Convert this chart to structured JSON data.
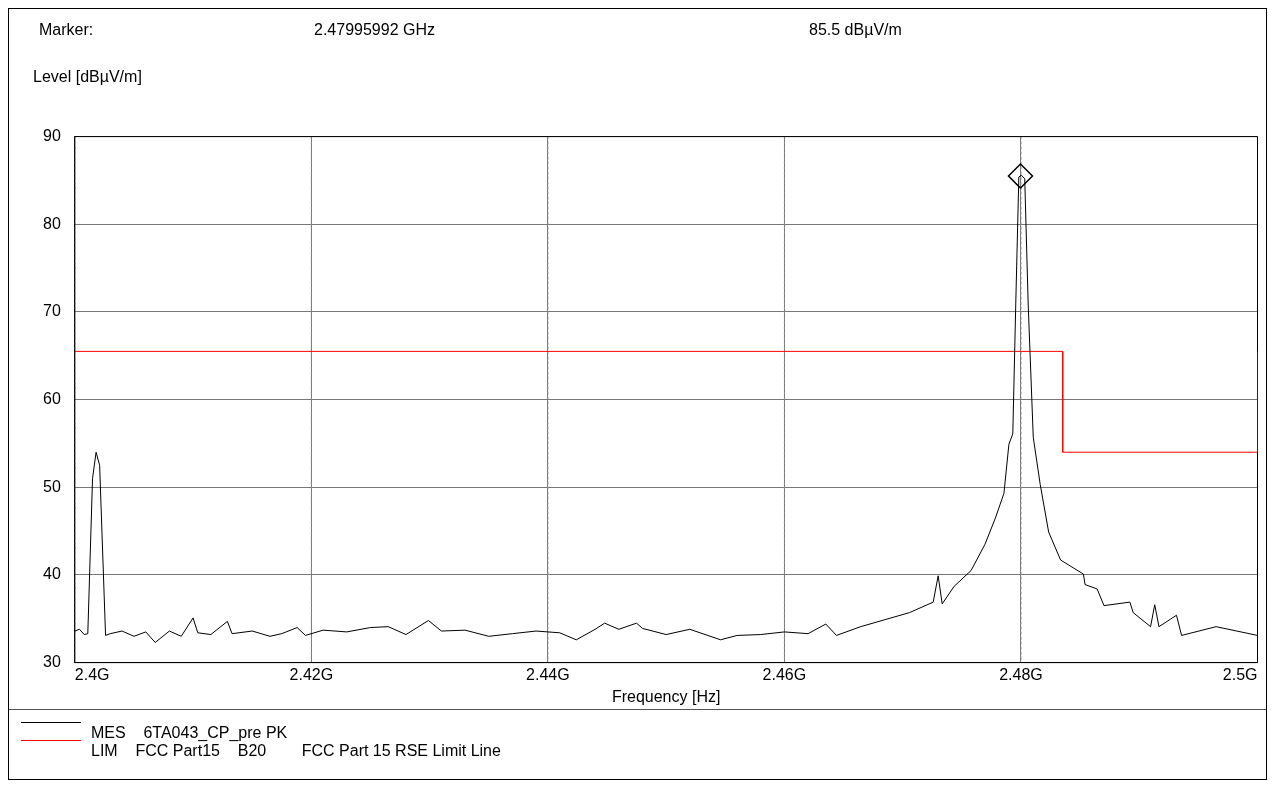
{
  "chart_data": {
    "type": "line",
    "annotations": [
      "Marker:",
      "2.47995992 GHz",
      "85.5 dBµV/m"
    ],
    "ylabel": "Level [dBµV/m]",
    "xlabel": "Frequency [Hz]",
    "xlim": [
      2.4,
      2.5
    ],
    "xticks": [
      {
        "value": 2.4,
        "label": "2.4G"
      },
      {
        "value": 2.42,
        "label": "2.42G"
      },
      {
        "value": 2.44,
        "label": "2.44G"
      },
      {
        "value": 2.46,
        "label": "2.46G"
      },
      {
        "value": 2.48,
        "label": "2.48G"
      },
      {
        "value": 2.5,
        "label": "2.5G"
      }
    ],
    "ylim": [
      30,
      90
    ],
    "yticks": [
      30,
      40,
      50,
      60,
      70,
      80,
      90
    ],
    "grid": true,
    "legend": "bottom",
    "marker": "none",
    "line_style": "solid",
    "series": [
      {
        "name": "MES    6TA043_CP_pre PK",
        "type": "line",
        "color": "#000000",
        "x": [
          2.4,
          2.4004,
          2.4008,
          2.4011,
          2.4015,
          2.4018,
          2.4021,
          2.4026,
          2.403,
          2.404,
          2.405,
          2.406,
          2.4068,
          2.408,
          2.409,
          2.41,
          2.4104,
          2.4115,
          2.4129,
          2.4133,
          2.415,
          2.4165,
          2.4175,
          2.4188,
          2.4195,
          2.421,
          2.423,
          2.425,
          2.4265,
          2.428,
          2.4299,
          2.431,
          2.433,
          2.435,
          2.437,
          2.439,
          2.441,
          2.4424,
          2.444,
          2.4448,
          2.446,
          2.4475,
          2.448,
          2.45,
          2.452,
          2.4546,
          2.456,
          2.458,
          2.46,
          2.462,
          2.4635,
          2.4644,
          2.46645,
          2.46851,
          2.47057,
          2.47258,
          2.473,
          2.47334,
          2.47435,
          2.47578,
          2.47696,
          2.47784,
          2.47856,
          2.47898,
          2.47931,
          2.47956,
          2.47982,
          2.48003,
          2.48032,
          2.48061,
          2.48104,
          2.48163,
          2.48234,
          2.48335,
          2.48528,
          2.48542,
          2.48644,
          2.48702,
          2.48921,
          2.48949,
          2.49096,
          2.49131,
          2.49167,
          2.49315,
          2.49358,
          2.4965,
          2.5
        ],
        "values": [
          33.6,
          33.8,
          33.2,
          33.3,
          51.0,
          54.0,
          52.5,
          33.1,
          33.3,
          33.6,
          33.0,
          33.5,
          32.3,
          33.6,
          33.0,
          35.1,
          33.4,
          33.2,
          34.7,
          33.3,
          33.6,
          33.0,
          33.3,
          34.0,
          33.1,
          33.7,
          33.5,
          34.0,
          34.1,
          33.2,
          34.8,
          33.6,
          33.7,
          33.0,
          33.3,
          33.6,
          33.4,
          32.6,
          33.8,
          34.5,
          33.8,
          34.5,
          33.9,
          33.2,
          33.8,
          32.6,
          33.1,
          33.2,
          33.5,
          33.3,
          34.4,
          33.1,
          34.1,
          34.9,
          35.7,
          36.9,
          39.9,
          36.7,
          38.7,
          40.5,
          43.5,
          46.5,
          49.3,
          54.9,
          56.1,
          70.9,
          85.4,
          85.6,
          85.2,
          70.9,
          55.7,
          50.3,
          44.9,
          41.7,
          40.1,
          38.9,
          38.4,
          36.5,
          36.9,
          35.7,
          34.1,
          36.6,
          34.1,
          35.4,
          33.1,
          34.1,
          33.1
        ]
      },
      {
        "name": "LIM    FCC Part15    B20        FCC Part 15 RSE Limit Line",
        "type": "line",
        "color": "#ff0000",
        "x": [
          2.4,
          2.48353,
          2.48353,
          2.5,
          2.5
        ],
        "values": [
          65.5,
          65.5,
          54,
          54,
          65.5
        ]
      },
      {
        "type": "scatter",
        "marker": "diamond",
        "color": "#000000",
        "x": [
          2.47995992
        ],
        "values": [
          85.5
        ]
      }
    ]
  }
}
